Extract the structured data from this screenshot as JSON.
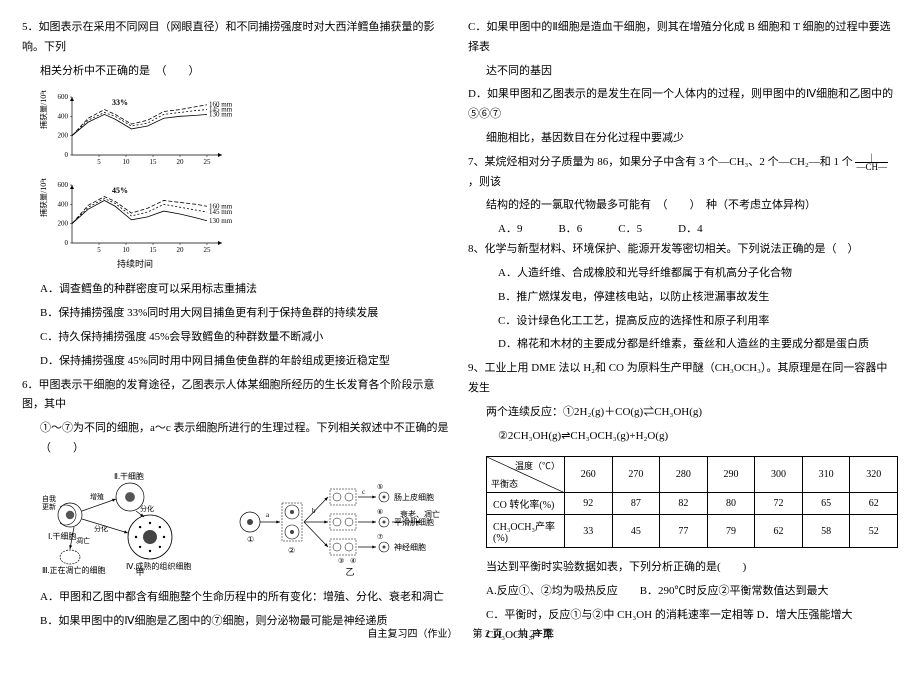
{
  "footer": {
    "left": "自主复习四（作业）",
    "center": "第 2 页",
    "right": "共 24 页"
  },
  "q5": {
    "stem1": "5．如图表示在采用不同网目（网眼直径）和不同捕捞强度时对大西洋鳕鱼捕获量的影响。下列",
    "stem2": "相关分析中不正确的是　（　　）",
    "chart": {
      "y_label_top": "捕获量/10³t",
      "x_label": "持续时间",
      "x_ticks": [
        5,
        10,
        15,
        20,
        25
      ],
      "top": {
        "y_max": 600,
        "y_ticks": [
          0,
          200,
          400,
          600
        ],
        "title": "33%",
        "series": [
          {
            "label": "160 mm",
            "color": "#000",
            "dash": "4,2",
            "points": [
              [
                0,
                200
              ],
              [
                3,
                380
              ],
              [
                6,
                470
              ],
              [
                8,
                420
              ],
              [
                11,
                320
              ],
              [
                14,
                360
              ],
              [
                17,
                450
              ],
              [
                20,
                470
              ],
              [
                23,
                500
              ],
              [
                25,
                520
              ]
            ]
          },
          {
            "label": "145 mm",
            "color": "#000",
            "dash": "2,2",
            "points": [
              [
                0,
                200
              ],
              [
                3,
                360
              ],
              [
                6,
                440
              ],
              [
                8,
                400
              ],
              [
                11,
                300
              ],
              [
                14,
                330
              ],
              [
                17,
                420
              ],
              [
                20,
                440
              ],
              [
                23,
                460
              ],
              [
                25,
                470
              ]
            ]
          },
          {
            "label": "130 mm",
            "color": "#000",
            "dash": "0",
            "points": [
              [
                0,
                200
              ],
              [
                3,
                340
              ],
              [
                6,
                420
              ],
              [
                8,
                370
              ],
              [
                11,
                270
              ],
              [
                14,
                300
              ],
              [
                17,
                380
              ],
              [
                20,
                400
              ],
              [
                23,
                410
              ],
              [
                25,
                420
              ]
            ]
          }
        ]
      },
      "bottom": {
        "y_max": 600,
        "y_ticks": [
          0,
          200,
          400,
          600
        ],
        "title": "45%",
        "series": [
          {
            "label": "160 mm",
            "color": "#000",
            "dash": "4,2",
            "points": [
              [
                0,
                200
              ],
              [
                3,
                390
              ],
              [
                6,
                480
              ],
              [
                8,
                430
              ],
              [
                11,
                310
              ],
              [
                14,
                360
              ],
              [
                17,
                440
              ],
              [
                20,
                420
              ],
              [
                23,
                400
              ],
              [
                25,
                380
              ]
            ]
          },
          {
            "label": "145 mm",
            "color": "#000",
            "dash": "2,2",
            "points": [
              [
                0,
                200
              ],
              [
                3,
                370
              ],
              [
                6,
                460
              ],
              [
                8,
                410
              ],
              [
                11,
                280
              ],
              [
                14,
                320
              ],
              [
                17,
                400
              ],
              [
                20,
                370
              ],
              [
                23,
                340
              ],
              [
                25,
                320
              ]
            ]
          },
          {
            "label": "130 mm",
            "color": "#000",
            "dash": "0",
            "points": [
              [
                0,
                200
              ],
              [
                3,
                350
              ],
              [
                6,
                440
              ],
              [
                8,
                380
              ],
              [
                11,
                240
              ],
              [
                14,
                270
              ],
              [
                17,
                330
              ],
              [
                20,
                300
              ],
              [
                23,
                260
              ],
              [
                25,
                230
              ]
            ]
          }
        ]
      }
    },
    "optA": "A．调查鳕鱼的种群密度可以采用标志重捕法",
    "optB": "B．保持捕捞强度 33%同时用大网目捕鱼更有利于保持鱼群的持续发展",
    "optC": "C．持久保持捕捞强度 45%会导致鳕鱼的种群数量不断减小",
    "optD": "D．保持捕捞强度 45%同时用中网目捕鱼使鱼群的年龄组成更接近稳定型"
  },
  "q6": {
    "stem1": "6．甲图表示干细胞的发育途径，乙图表示人体某细胞所经历的生长发育各个阶段示意图，其中",
    "stem2": "①～⑦为不同的细胞，a～c 表示细胞所进行的生理过程。下列相关叙述中不正确的是　（　　）",
    "diagram": {
      "jia": {
        "title": "甲",
        "labels": {
          "I": "Ⅰ.干细胞",
          "II": "Ⅱ.干细胞",
          "III": "Ⅲ.正在凋亡的细胞",
          "IV": "Ⅳ.成熟的组织细胞",
          "self": "自我\n更新",
          "diff1": "分化",
          "diff2": "分化",
          "apop": "凋亡"
        }
      },
      "yi": {
        "title": "乙",
        "row_labels": [
          "肠上皮细胞",
          "平滑肌细胞",
          "神经细胞"
        ],
        "arrows": [
          "a",
          "b",
          "c"
        ],
        "end": "衰老、凋亡",
        "nodes": [
          "①",
          "②",
          "③",
          "④",
          "⑤",
          "⑥",
          "⑦"
        ]
      }
    },
    "optA": "A．甲图和乙图中都含有细胞整个生命历程中的所有变化：增殖、分化、衰老和凋亡",
    "optB": "B．如果甲图中的Ⅳ细胞是乙图中的⑦细胞，则分泌物最可能是神经递质"
  },
  "q6c": {
    "line1": "C．如果甲图中的Ⅱ细胞是造血干细胞，则其在增殖分化成 B 细胞和 T 细胞的过程中要选择表",
    "line2": "达不同的基因"
  },
  "q6d": {
    "line1": "D．如果甲图和乙图表示的是发生在同一个人体内的过程，则甲图中的Ⅳ细胞和乙图中的⑤⑥⑦",
    "line2": "细胞相比，基因数目在分化过程中要减少"
  },
  "q7": {
    "stem1": "7、某烷烃相对分子质量为 86，如果分子中含有 3 个—CH₃、2 个—CH₂—和 1 个",
    "frac_n": "|",
    "frac_d": "—CH—",
    "stem1b": "，则该",
    "stem2": "结构的烃的一氯取代物最多可能有　（　　）　种（不考虑立体异构）",
    "opts": {
      "A": "A．9",
      "B": "B．6",
      "C": "C．5",
      "D": "D．4"
    }
  },
  "q8": {
    "stem": "8、化学与新型材料、环境保护、能源开发等密切相关。下列说法正确的是（　）",
    "A": "A．人造纤维、合成橡胶和光导纤维都属于有机高分子化合物",
    "B": "B．推广燃煤发电，停建核电站，以防止核泄漏事故发生",
    "C": "C．设计绿色化工工艺，提高反应的选择性和原子利用率",
    "D": "D．棉花和木材的主要成分都是纤维素，蚕丝和人造丝的主要成分都是蛋白质"
  },
  "q9": {
    "stem1": "9、工业上用 DME 法以 H₂和 CO 为原料生产甲醚（CH₃OCH₃）。其原理是在同一容器中发生",
    "stem2": "两个连续反应：①2H₂(g)＋CO(g)⇌CH₃OH(g)",
    "stem3": "②2CH₃OH(g)⇌CH₃OCH₃(g)+H₂O(g)",
    "table": {
      "diag_top": "温度（℃）",
      "diag_bottom": "平衡态",
      "cols": [
        "260",
        "270",
        "280",
        "290",
        "300",
        "310",
        "320"
      ],
      "rows": [
        {
          "label": "CO 转化率(%)",
          "vals": [
            "92",
            "87",
            "82",
            "80",
            "72",
            "65",
            "62"
          ]
        },
        {
          "label": "CH₃OCH₃产率(%)",
          "vals": [
            "33",
            "45",
            "77",
            "79",
            "62",
            "58",
            "52"
          ]
        }
      ]
    },
    "post": "当达到平衡时实验数据如表，下列分析正确的是(　　)",
    "optAB": "A.反应①、②均为吸热反应　　B．290℃时反应②平衡常数值达到最大",
    "optCD": "C．平衡时，反应①与②中 CH₃OH 的消耗速率一定相等 D．增大压强能增大 CH₃OCH₃产率"
  }
}
